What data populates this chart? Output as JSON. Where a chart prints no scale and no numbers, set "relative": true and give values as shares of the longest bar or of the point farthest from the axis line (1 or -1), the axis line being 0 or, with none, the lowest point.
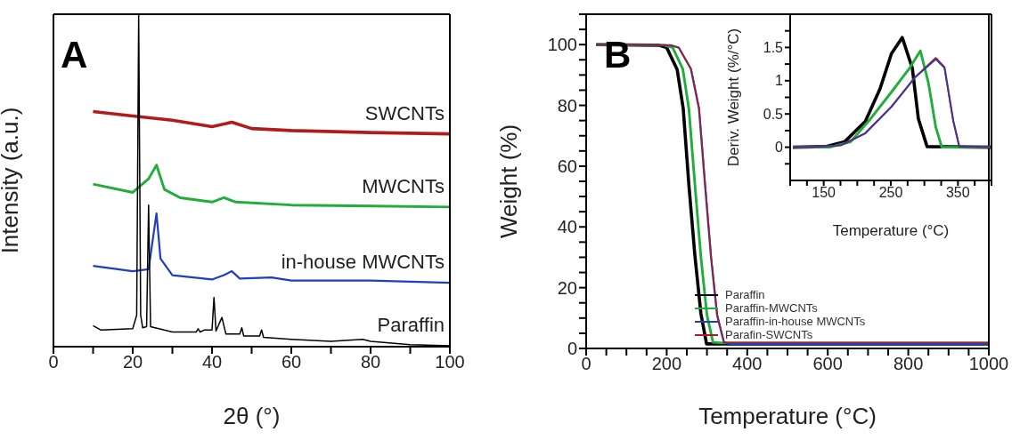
{
  "chart_data": [
    {
      "type": "line",
      "title": "A",
      "xlabel": "2θ (°)",
      "ylabel": "Intensity (a.u.)",
      "relative": true,
      "tick_labels": "x",
      "xlim": [
        0,
        100
      ],
      "xticks": [
        0,
        {
          "value": 10,
          "label": null
        },
        20,
        {
          "value": 30,
          "label": null
        },
        40,
        {
          "value": 50,
          "label": null
        },
        60,
        {
          "value": 70,
          "label": null
        },
        80,
        {
          "value": 90,
          "label": null
        },
        100
      ],
      "series": [
        {
          "name": "SWCNTs",
          "color": "#b01c1c",
          "x": [
            10,
            20,
            30,
            40,
            45,
            50,
            60,
            80,
            100
          ],
          "values": [
            0.707,
            0.694,
            0.681,
            0.662,
            0.675,
            0.656,
            0.65,
            0.644,
            0.64
          ]
        },
        {
          "name": "MWCNTs",
          "color": "#1fae3a",
          "x": [
            10,
            20,
            24,
            26,
            28,
            32,
            40,
            43,
            46,
            60,
            80,
            100
          ],
          "values": [
            0.489,
            0.464,
            0.505,
            0.546,
            0.473,
            0.448,
            0.435,
            0.448,
            0.435,
            0.426,
            0.423,
            0.42
          ]
        },
        {
          "name": "in-house MWCNTs",
          "color": "#1e3fbf",
          "x": [
            10,
            20,
            24,
            26,
            27,
            30,
            40,
            43,
            45,
            47,
            55,
            60,
            80,
            100
          ],
          "values": [
            0.243,
            0.227,
            0.233,
            0.401,
            0.265,
            0.215,
            0.202,
            0.215,
            0.227,
            0.205,
            0.208,
            0.199,
            0.199,
            0.192
          ]
        },
        {
          "name": "Paraffin",
          "color": "#000000",
          "x": [
            10,
            12,
            20,
            21,
            21.5,
            22,
            22.5,
            23.5,
            24,
            24.5,
            30,
            36,
            36.5,
            37,
            38,
            40,
            40.5,
            41,
            42.5,
            43.5,
            47,
            47.5,
            48,
            52,
            52.5,
            53,
            60,
            70,
            78,
            80,
            90,
            100
          ],
          "values": [
            0.063,
            0.05,
            0.054,
            0.095,
            1.0,
            0.095,
            0.057,
            0.06,
            0.426,
            0.06,
            0.044,
            0.044,
            0.054,
            0.044,
            0.05,
            0.05,
            0.148,
            0.047,
            0.088,
            0.038,
            0.038,
            0.057,
            0.032,
            0.032,
            0.05,
            0.028,
            0.022,
            0.016,
            0.022,
            0.016,
            0.006,
            0.003
          ]
        }
      ]
    },
    {
      "type": "line",
      "title": "B",
      "xlabel": "Temperature (°C)",
      "ylabel": "Weight (%)",
      "legend": "bottom right",
      "xlim": [
        0,
        1000
      ],
      "ylim": [
        0,
        110
      ],
      "xticks": [
        0,
        {
          "value": 50,
          "label": null
        },
        {
          "value": 100,
          "label": null
        },
        {
          "value": 150,
          "label": null
        },
        200,
        {
          "value": 250,
          "label": null
        },
        {
          "value": 300,
          "label": null
        },
        {
          "value": 350,
          "label": null
        },
        400,
        {
          "value": 450,
          "label": null
        },
        {
          "value": 500,
          "label": null
        },
        {
          "value": 550,
          "label": null
        },
        600,
        {
          "value": 650,
          "label": null
        },
        {
          "value": 700,
          "label": null
        },
        {
          "value": 750,
          "label": null
        },
        800,
        {
          "value": 850,
          "label": null
        },
        {
          "value": 900,
          "label": null
        },
        {
          "value": 950,
          "label": null
        },
        1000
      ],
      "yticks": [
        0,
        {
          "value": 5,
          "label": null
        },
        {
          "value": 10,
          "label": null
        },
        {
          "value": 15,
          "label": null
        },
        20,
        {
          "value": 25,
          "label": null
        },
        {
          "value": 30,
          "label": null
        },
        {
          "value": 35,
          "label": null
        },
        40,
        {
          "value": 45,
          "label": null
        },
        {
          "value": 50,
          "label": null
        },
        {
          "value": 55,
          "label": null
        },
        60,
        {
          "value": 65,
          "label": null
        },
        {
          "value": 70,
          "label": null
        },
        {
          "value": 75,
          "label": null
        },
        80,
        {
          "value": 85,
          "label": null
        },
        {
          "value": 90,
          "label": null
        },
        {
          "value": 95,
          "label": null
        },
        100,
        {
          "value": 105,
          "label": null
        },
        {
          "value": 110,
          "label": null
        }
      ],
      "series": [
        {
          "name": "Paraffin",
          "color": "#000000",
          "x": [
            25,
            180,
            200,
            226,
            241,
            255,
            270,
            285,
            299,
            320,
            1000
          ],
          "values": [
            100,
            99.8,
            99,
            91.8,
            79,
            54,
            30.6,
            11.4,
            1.5,
            1.5,
            1.5
          ]
        },
        {
          "name": "Paraffin-MWCNTs",
          "color": "#1fae3a",
          "x": [
            25,
            195,
            215,
            240,
            255,
            270,
            285,
            300,
            315,
            340,
            1000
          ],
          "values": [
            100,
            99.8,
            99,
            92,
            79,
            54,
            30,
            11,
            2,
            1.8,
            1.8
          ]
        },
        {
          "name": "Paraffin-in-house MWCNTs",
          "color": "#1e3fbf",
          "x": [
            25,
            210,
            230,
            260,
            280,
            295,
            310,
            325,
            342,
            360,
            1000
          ],
          "values": [
            100,
            99.8,
            99,
            92,
            79,
            54,
            30,
            11,
            2,
            1.5,
            1.5
          ]
        },
        {
          "name": "Parafin-SWCNTs",
          "color": "#b01c1c",
          "x": [
            25,
            210,
            230,
            261,
            281,
            296,
            311,
            326,
            343,
            360,
            1000
          ],
          "values": [
            100,
            99.8,
            99,
            92,
            79,
            54,
            30,
            11,
            2,
            2,
            2
          ]
        }
      ]
    },
    {
      "type": "line",
      "xlabel": "Temperature (°C)",
      "ylabel": "Deriv. Weight (%/°C)",
      "xlim": [
        100,
        400
      ],
      "ylim": [
        -0.5,
        2
      ],
      "xticks": [
        {
          "value": 100,
          "label": null
        },
        {
          "value": 125,
          "label": null
        },
        150,
        {
          "value": 175,
          "label": null
        },
        {
          "value": 200,
          "label": null
        },
        {
          "value": 225,
          "label": null
        },
        250,
        {
          "value": 275,
          "label": null
        },
        {
          "value": 300,
          "label": null
        },
        {
          "value": 325,
          "label": null
        },
        350,
        {
          "value": 375,
          "label": null
        },
        {
          "value": 400,
          "label": null
        }
      ],
      "yticks": [
        {
          "value": -0.25,
          "label": null
        },
        0,
        {
          "value": 0.25,
          "label": null
        },
        0.5,
        {
          "value": 0.75,
          "label": null
        },
        1,
        {
          "value": 1.25,
          "label": null
        },
        1.5,
        {
          "value": 1.75,
          "label": null
        }
      ],
      "series": [
        {
          "color": "#000000",
          "x": [
            104,
            154,
            181,
            212,
            234,
            251,
            267,
            282,
            291,
            304,
            400
          ],
          "values": [
            0,
            0.01,
            0.08,
            0.39,
            0.88,
            1.41,
            1.65,
            1.19,
            0.43,
            0.01,
            0
          ]
        },
        {
          "color": "#1fae3a",
          "x": [
            104,
            159,
            190,
            220,
            251,
            278,
            294,
            306,
            317,
            326,
            400
          ],
          "values": [
            0,
            0,
            0.08,
            0.43,
            0.83,
            1.19,
            1.45,
            0.97,
            0.3,
            0,
            0
          ]
        },
        {
          "color": "#b01c1c",
          "x": [
            104,
            132,
            176,
            212,
            251,
            286,
            317,
            330,
            343,
            352,
            400
          ],
          "values": [
            0,
            0,
            0.03,
            0.21,
            0.61,
            1.05,
            1.34,
            1.2,
            0.4,
            0.01,
            0
          ]
        },
        {
          "color": "#1e3fbf",
          "x": [
            104,
            132,
            176,
            212,
            251,
            286,
            317,
            330,
            343,
            352,
            400
          ],
          "values": [
            0,
            0,
            0.03,
            0.21,
            0.61,
            1.05,
            1.32,
            1.19,
            0.39,
            0.01,
            0
          ]
        }
      ]
    }
  ]
}
